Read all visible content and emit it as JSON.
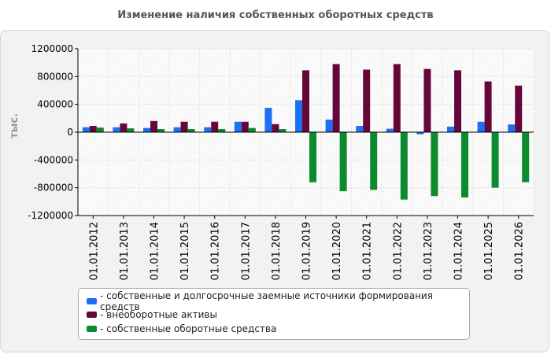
{
  "colors": {
    "series": [
      "#1d6ff5",
      "#66073a",
      "#0b8a2e"
    ],
    "axis": "#000000",
    "grid": "#d8d8d8"
  },
  "chart_data": {
    "type": "bar",
    "title": "Изменение наличия собственных оборотных средств",
    "ylabel": "тыс.",
    "xlabel": "",
    "ylim": [
      -1200000,
      1200000
    ],
    "yticks": [
      "1200000",
      "800000",
      "400000",
      "0",
      "-400000",
      "-800000",
      "-1200000"
    ],
    "grid": true,
    "legend_position": "bottom",
    "categories": [
      "01.01.2012",
      "01.01.2013",
      "01.01.2014",
      "01.01.2015",
      "01.01.2016",
      "01.01.2017",
      "01.01.2018",
      "01.01.2019",
      "01.01.2020",
      "01.01.2021",
      "01.01.2022",
      "01.01.2023",
      "01.01.2024",
      "01.01.2025",
      "01.01.2026"
    ],
    "series": [
      {
        "name": "- собственные и долгосрочные заемные источники формирования средств",
        "values": [
          70000,
          70000,
          60000,
          70000,
          70000,
          150000,
          350000,
          460000,
          180000,
          90000,
          50000,
          -30000,
          80000,
          150000,
          110000
        ]
      },
      {
        "name": "- внеоборотные активы",
        "values": [
          90000,
          125000,
          160000,
          150000,
          150000,
          150000,
          115000,
          890000,
          980000,
          900000,
          980000,
          910000,
          890000,
          730000,
          670000
        ]
      },
      {
        "name": "- собственные оборотные средства",
        "values": [
          65000,
          55000,
          45000,
          45000,
          45000,
          60000,
          45000,
          -720000,
          -850000,
          -830000,
          -970000,
          -920000,
          -940000,
          -800000,
          -720000
        ]
      }
    ]
  }
}
